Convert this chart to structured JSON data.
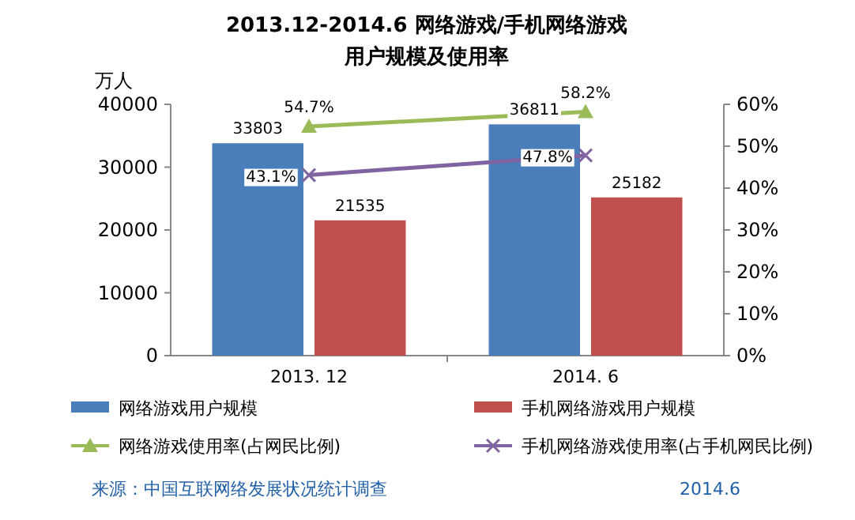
{
  "chart_data": {
    "type": "bar",
    "title": "2013.12-2014.6 网络游戏/手机网络游戏",
    "subtitle": "用户规模及使用率",
    "ylabel": "万人",
    "categories": [
      "2013. 12",
      "2014. 6"
    ],
    "series": [
      {
        "name": "网络游戏用户规模",
        "color": "#4a7ebb",
        "values": [
          33803,
          36811
        ],
        "value_labels": [
          "33803",
          "36811"
        ]
      },
      {
        "name": "手机网络游戏用户规模",
        "color": "#c0504d",
        "values": [
          21535,
          25182
        ],
        "value_labels": [
          "21535",
          "25182"
        ]
      },
      {
        "name": "网络游戏使用率(占网民比例)",
        "type": "line",
        "axis": "y2",
        "color": "#9bbb59",
        "marker": "triangle",
        "values": [
          54.7,
          58.2
        ],
        "value_labels": [
          "54.7%",
          "58.2%"
        ]
      },
      {
        "name": "手机网络游戏使用率(占手机网民比例)",
        "type": "line",
        "axis": "y2",
        "color": "#8064a2",
        "marker": "cross",
        "values": [
          43.1,
          47.8
        ],
        "value_labels": [
          "43.1%",
          "47.8%"
        ]
      }
    ],
    "ylim": [
      0,
      40000
    ],
    "yticks": [
      0,
      10000,
      20000,
      30000,
      40000
    ],
    "y2lim": [
      0,
      60
    ],
    "y2ticks": [
      {
        "value": 0,
        "label": "0%"
      },
      {
        "value": 10,
        "label": "10%"
      },
      {
        "value": 20,
        "label": "20%"
      },
      {
        "value": 30,
        "label": "30%"
      },
      {
        "value": 40,
        "label": "40%"
      },
      {
        "value": 50,
        "label": "50%"
      },
      {
        "value": 60,
        "label": "60%"
      }
    ],
    "legend": "bottom",
    "annotations": [
      "来源：中国互联网络发展状况统计调查",
      "2014.6"
    ]
  }
}
